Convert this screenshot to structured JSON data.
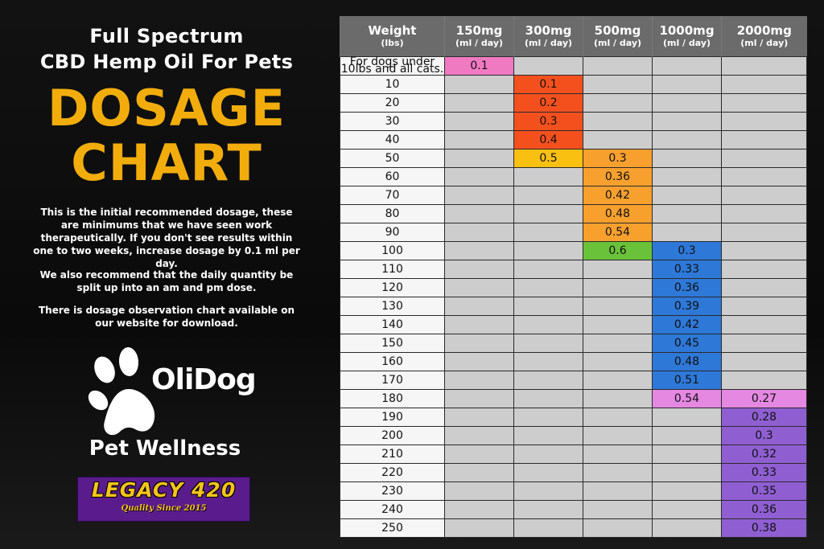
{
  "header": {
    "line1": "Full Spectrum",
    "line2": "CBD Hemp Oil For Pets",
    "title_line1": "DOSAGE",
    "title_line2": "CHART"
  },
  "paragraphs": [
    "This is the initial recommended dosage, these are minimums that we have seen work therapeutically. If you don't see results within one to two weeks, increase dosage by 0.1 ml per day.",
    "We also recommend that the daily quantity be split up into an am and pm dose.",
    "There is dosage observation chart available on our website for download."
  ],
  "brand": {
    "name": "OliDog",
    "tagline": "Pet Wellness",
    "paw_icon": "paw-print-icon"
  },
  "partner": {
    "name": "LEGACY 420",
    "tagline": "Quality Since 2015",
    "bg_color": "#5a1c8c",
    "text_color": "#f5c518"
  },
  "colors": {
    "pink": "#f07ac2",
    "red": "#f4501e",
    "yellow": "#f9c012",
    "orange": "#f8a02e",
    "green": "#6ac23a",
    "blue": "#2e78d8",
    "violet": "#e488e2",
    "purple": "#8f5fd2",
    "title": "#f2ad0c"
  },
  "table": {
    "columns": [
      {
        "main": "Weight",
        "sub": "(lbs)"
      },
      {
        "main": "150mg",
        "sub": "(ml / day)"
      },
      {
        "main": "300mg",
        "sub": "(ml / day)"
      },
      {
        "main": "500mg",
        "sub": "(ml / day)"
      },
      {
        "main": "1000mg",
        "sub": "(ml / day)"
      },
      {
        "main": "2000mg",
        "sub": "(ml / day)"
      }
    ],
    "rows": [
      {
        "weight": "For dogs under 10lbs and all cats.",
        "values": [
          "0.1",
          "",
          "",
          "",
          ""
        ]
      },
      {
        "weight": "10",
        "values": [
          "",
          "0.1",
          "",
          "",
          ""
        ]
      },
      {
        "weight": "20",
        "values": [
          "",
          "0.2",
          "",
          "",
          ""
        ]
      },
      {
        "weight": "30",
        "values": [
          "",
          "0.3",
          "",
          "",
          ""
        ]
      },
      {
        "weight": "40",
        "values": [
          "",
          "0.4",
          "",
          "",
          ""
        ]
      },
      {
        "weight": "50",
        "values": [
          "",
          "0.5",
          "0.3",
          "",
          ""
        ]
      },
      {
        "weight": "60",
        "values": [
          "",
          "",
          "0.36",
          "",
          ""
        ]
      },
      {
        "weight": "70",
        "values": [
          "",
          "",
          "0.42",
          "",
          ""
        ]
      },
      {
        "weight": "80",
        "values": [
          "",
          "",
          "0.48",
          "",
          ""
        ]
      },
      {
        "weight": "90",
        "values": [
          "",
          "",
          "0.54",
          "",
          ""
        ]
      },
      {
        "weight": "100",
        "values": [
          "",
          "",
          "0.6",
          "0.3",
          ""
        ]
      },
      {
        "weight": "110",
        "values": [
          "",
          "",
          "",
          "0.33",
          ""
        ]
      },
      {
        "weight": "120",
        "values": [
          "",
          "",
          "",
          "0.36",
          ""
        ]
      },
      {
        "weight": "130",
        "values": [
          "",
          "",
          "",
          "0.39",
          ""
        ]
      },
      {
        "weight": "140",
        "values": [
          "",
          "",
          "",
          "0.42",
          ""
        ]
      },
      {
        "weight": "150",
        "values": [
          "",
          "",
          "",
          "0.45",
          ""
        ]
      },
      {
        "weight": "160",
        "values": [
          "",
          "",
          "",
          "0.48",
          ""
        ]
      },
      {
        "weight": "170",
        "values": [
          "",
          "",
          "",
          "0.51",
          ""
        ]
      },
      {
        "weight": "180",
        "values": [
          "",
          "",
          "",
          "0.54",
          "0.27"
        ]
      },
      {
        "weight": "190",
        "values": [
          "",
          "",
          "",
          "",
          "0.28"
        ]
      },
      {
        "weight": "200",
        "values": [
          "",
          "",
          "",
          "",
          "0.3"
        ]
      },
      {
        "weight": "210",
        "values": [
          "",
          "",
          "",
          "",
          "0.32"
        ]
      },
      {
        "weight": "220",
        "values": [
          "",
          "",
          "",
          "",
          "0.33"
        ]
      },
      {
        "weight": "230",
        "values": [
          "",
          "",
          "",
          "",
          "0.35"
        ]
      },
      {
        "weight": "240",
        "values": [
          "",
          "",
          "",
          "",
          "0.36"
        ]
      },
      {
        "weight": "250",
        "values": [
          "",
          "",
          "",
          "",
          "0.38"
        ]
      }
    ]
  }
}
